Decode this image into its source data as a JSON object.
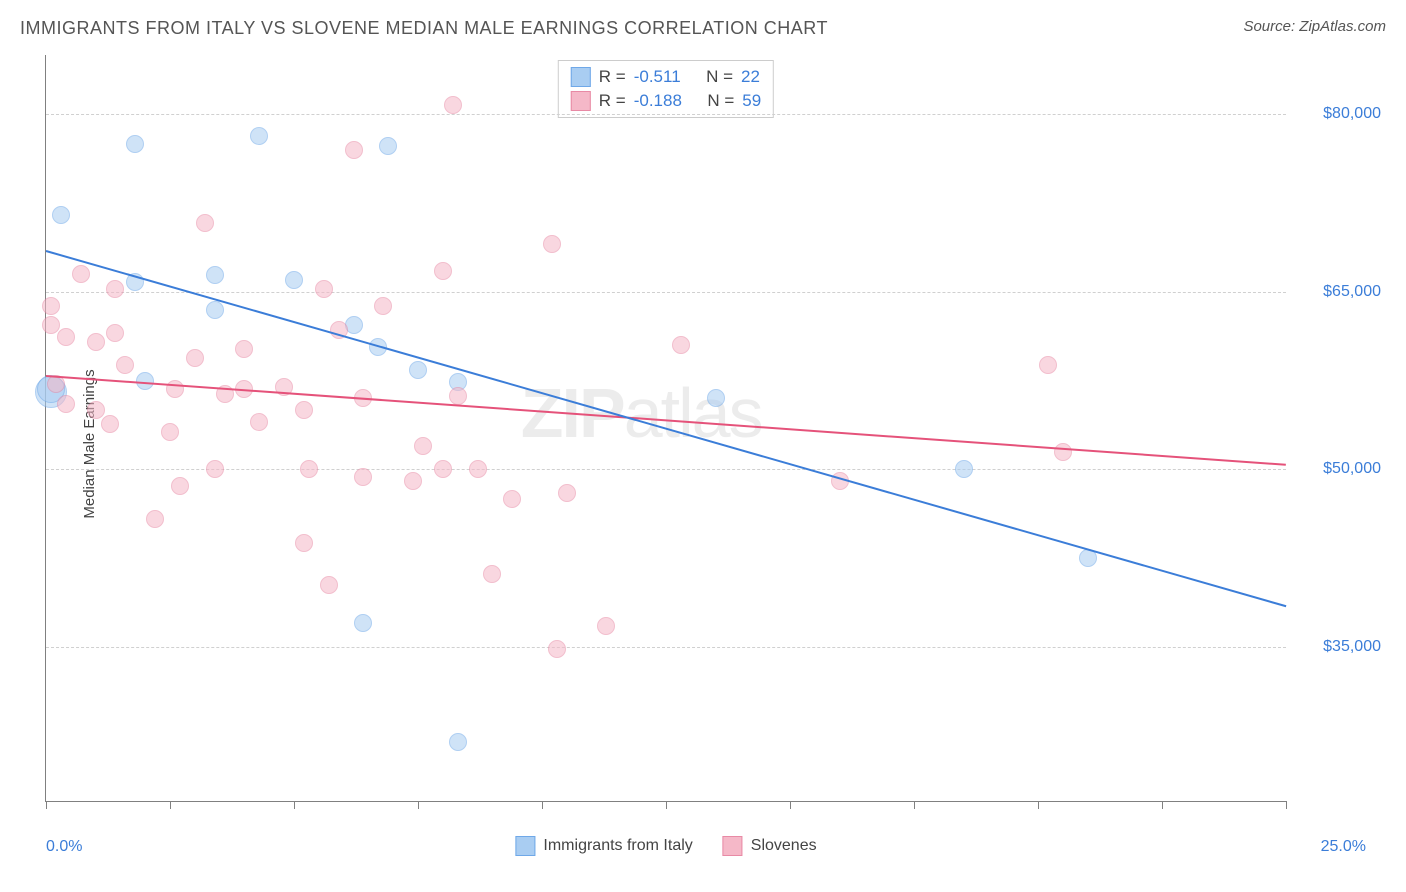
{
  "title": "IMMIGRANTS FROM ITALY VS SLOVENE MEDIAN MALE EARNINGS CORRELATION CHART",
  "source": "Source: ZipAtlas.com",
  "watermark_bold": "ZIP",
  "watermark_rest": "atlas",
  "chart": {
    "type": "scatter",
    "y_title": "Median Male Earnings",
    "xlim": [
      0,
      25
    ],
    "ylim": [
      22000,
      85000
    ],
    "x_axis": {
      "left_label": "0.0%",
      "right_label": "25.0%",
      "tick_positions": [
        0,
        2.5,
        5,
        7.5,
        10,
        12.5,
        15,
        17.5,
        20,
        22.5,
        25
      ]
    },
    "y_axis": {
      "grid": [
        {
          "value": 35000,
          "label": "$35,000"
        },
        {
          "value": 50000,
          "label": "$50,000"
        },
        {
          "value": 65000,
          "label": "$65,000"
        },
        {
          "value": 80000,
          "label": "$80,000"
        }
      ]
    },
    "series": [
      {
        "name": "Immigrants from Italy",
        "label": "Immigrants from Italy",
        "fill_color": "#a9cdf2",
        "fill_opacity": 0.55,
        "stroke_color": "#6fa8e8",
        "line_color": "#3b7dd8",
        "marker_radius": 9,
        "R": "-0.511",
        "N": "22",
        "trend": {
          "x1": 0,
          "y1": 68500,
          "x2": 25,
          "y2": 38500
        },
        "points": [
          {
            "x": 0.1,
            "y": 56500,
            "r": 16
          },
          {
            "x": 0.1,
            "y": 56800,
            "r": 14
          },
          {
            "x": 0.3,
            "y": 71500
          },
          {
            "x": 1.8,
            "y": 77500
          },
          {
            "x": 1.8,
            "y": 65800
          },
          {
            "x": 2.0,
            "y": 57500
          },
          {
            "x": 3.4,
            "y": 66400
          },
          {
            "x": 3.4,
            "y": 63500
          },
          {
            "x": 4.3,
            "y": 78200
          },
          {
            "x": 5.0,
            "y": 66000
          },
          {
            "x": 6.2,
            "y": 62200
          },
          {
            "x": 6.4,
            "y": 37000
          },
          {
            "x": 6.7,
            "y": 60300
          },
          {
            "x": 6.9,
            "y": 77300
          },
          {
            "x": 7.5,
            "y": 58400
          },
          {
            "x": 8.3,
            "y": 57400
          },
          {
            "x": 8.3,
            "y": 27000
          },
          {
            "x": 13.5,
            "y": 56000
          },
          {
            "x": 18.5,
            "y": 50000
          },
          {
            "x": 21.0,
            "y": 42500
          }
        ]
      },
      {
        "name": "Slovenes",
        "label": "Slovenes",
        "fill_color": "#f5b8c8",
        "fill_opacity": 0.55,
        "stroke_color": "#e88aa5",
        "line_color": "#e5527a",
        "marker_radius": 9,
        "R": "-0.188",
        "N": "59",
        "trend": {
          "x1": 0,
          "y1": 58000,
          "x2": 25,
          "y2": 50500
        },
        "points": [
          {
            "x": 0.1,
            "y": 63800
          },
          {
            "x": 0.1,
            "y": 62200
          },
          {
            "x": 0.2,
            "y": 57200
          },
          {
            "x": 0.4,
            "y": 61200
          },
          {
            "x": 0.4,
            "y": 55500
          },
          {
            "x": 0.7,
            "y": 66500
          },
          {
            "x": 1.0,
            "y": 60800
          },
          {
            "x": 1.0,
            "y": 55000
          },
          {
            "x": 1.3,
            "y": 53800
          },
          {
            "x": 1.4,
            "y": 65200
          },
          {
            "x": 1.4,
            "y": 61500
          },
          {
            "x": 1.6,
            "y": 58800
          },
          {
            "x": 2.2,
            "y": 45800
          },
          {
            "x": 2.5,
            "y": 53200
          },
          {
            "x": 2.6,
            "y": 56800
          },
          {
            "x": 2.7,
            "y": 48600
          },
          {
            "x": 3.0,
            "y": 59400
          },
          {
            "x": 3.2,
            "y": 70800
          },
          {
            "x": 3.4,
            "y": 50000
          },
          {
            "x": 3.6,
            "y": 56400
          },
          {
            "x": 4.0,
            "y": 60200
          },
          {
            "x": 4.0,
            "y": 56800
          },
          {
            "x": 4.3,
            "y": 54000
          },
          {
            "x": 4.8,
            "y": 57000
          },
          {
            "x": 5.2,
            "y": 55000
          },
          {
            "x": 5.2,
            "y": 43800
          },
          {
            "x": 5.3,
            "y": 50000
          },
          {
            "x": 5.6,
            "y": 65200
          },
          {
            "x": 5.7,
            "y": 40200
          },
          {
            "x": 5.9,
            "y": 61800
          },
          {
            "x": 6.2,
            "y": 77000
          },
          {
            "x": 6.4,
            "y": 49400
          },
          {
            "x": 6.4,
            "y": 56000
          },
          {
            "x": 6.8,
            "y": 63800
          },
          {
            "x": 7.4,
            "y": 49000
          },
          {
            "x": 7.6,
            "y": 52000
          },
          {
            "x": 8.0,
            "y": 66800
          },
          {
            "x": 8.0,
            "y": 50000
          },
          {
            "x": 8.2,
            "y": 80800
          },
          {
            "x": 8.3,
            "y": 56200
          },
          {
            "x": 8.7,
            "y": 50000
          },
          {
            "x": 9.0,
            "y": 41200
          },
          {
            "x": 9.4,
            "y": 47500
          },
          {
            "x": 10.2,
            "y": 69000
          },
          {
            "x": 10.3,
            "y": 34800
          },
          {
            "x": 10.5,
            "y": 48000
          },
          {
            "x": 11.3,
            "y": 36800
          },
          {
            "x": 12.8,
            "y": 60500
          },
          {
            "x": 16.0,
            "y": 49000
          },
          {
            "x": 20.2,
            "y": 58800
          },
          {
            "x": 20.5,
            "y": 51500
          }
        ]
      }
    ],
    "background_color": "#ffffff",
    "grid_color": "#d0d0d0",
    "axis_color": "#808080",
    "value_color": "#3b7dd8"
  },
  "legend_top": {
    "r_label": "R  = ",
    "n_label": "N = "
  }
}
